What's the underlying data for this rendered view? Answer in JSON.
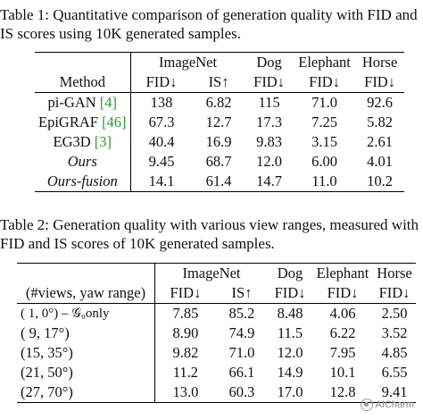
{
  "table1": {
    "caption": "Table 1: Quantitative comparison of generation quality with FID and IS scores using 10K generated samples.",
    "group_headers": [
      "ImageNet",
      "Dog",
      "Elephant",
      "Horse"
    ],
    "method_header": "Method",
    "metric_headers": [
      "FID↓",
      "IS↑",
      "FID↓",
      "FID↓",
      "FID↓"
    ],
    "rows": [
      {
        "name": "pi-GAN",
        "cite": "[4]",
        "italic": false,
        "values": [
          "138",
          "6.82",
          "115",
          "71.0",
          "92.6"
        ]
      },
      {
        "name": "EpiGRAF",
        "cite": "[46]",
        "italic": false,
        "values": [
          "67.3",
          "12.7",
          "17.3",
          "7.25",
          "5.82"
        ]
      },
      {
        "name": "EG3D",
        "cite": "[3]",
        "italic": false,
        "values": [
          "40.4",
          "16.9",
          "9.83",
          "3.15",
          "2.61"
        ]
      },
      {
        "name": "Ours",
        "cite": "",
        "italic": true,
        "values": [
          "9.45",
          "68.7",
          "12.0",
          "6.00",
          "4.01"
        ]
      },
      {
        "name": "Ours-fusion",
        "cite": "",
        "italic": true,
        "values": [
          "14.1",
          "61.4",
          "14.7",
          "11.0",
          "10.2"
        ]
      }
    ]
  },
  "table2": {
    "caption": "Table 2: Generation quality with various view ranges, measured with FID and IS scores of 10K generated samples.",
    "group_headers": [
      "ImageNet",
      "Dog",
      "Elephant",
      "Horse"
    ],
    "first_header": "(#views, yaw range)",
    "metric_headers": [
      "FID↓",
      "IS↑",
      "FID↓",
      "FID↓",
      "FID↓"
    ],
    "rows": [
      {
        "name": "( 1,  0°) – 𝒢ᵤonly",
        "values": [
          "7.85",
          "85.2",
          "8.48",
          "4.06",
          "2.50"
        ]
      },
      {
        "name": "( 9, 17°)",
        "values": [
          "8.90",
          "74.9",
          "11.5",
          "6.22",
          "3.52"
        ]
      },
      {
        "name": "(15, 35°)",
        "values": [
          "9.82",
          "71.0",
          "12.0",
          "7.95",
          "4.85"
        ]
      },
      {
        "name": "(21, 50°)",
        "values": [
          "11.2",
          "66.1",
          "14.9",
          "10.1",
          "6.55"
        ]
      },
      {
        "name": "(27, 70°)",
        "values": [
          "13.0",
          "60.3",
          "17.0",
          "12.8",
          "9.41"
        ]
      }
    ]
  },
  "watermark": {
    "text": "AICharm",
    "icon": "charm-logo-icon"
  }
}
